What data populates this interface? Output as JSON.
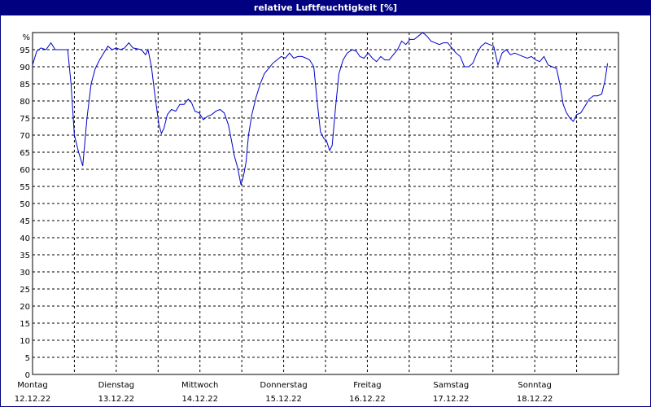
{
  "chart_data": {
    "type": "line",
    "title": "relative Luftfeuchtigkeit [%]",
    "y_unit_label": "%",
    "ylim": [
      0,
      100
    ],
    "y_ticks": [
      0,
      5,
      10,
      15,
      20,
      25,
      30,
      35,
      40,
      45,
      50,
      55,
      60,
      65,
      70,
      75,
      80,
      85,
      90,
      95
    ],
    "x_unit": "days since Montag 12.12.22 00:00",
    "xlim": [
      0,
      7
    ],
    "grid": true,
    "x_categories": [
      {
        "day": "Montag",
        "date": "12.12.22"
      },
      {
        "day": "Dienstag",
        "date": "13.12.22"
      },
      {
        "day": "Mittwoch",
        "date": "14.12.22"
      },
      {
        "day": "Donnerstag",
        "date": "15.12.22"
      },
      {
        "day": "Freitag",
        "date": "16.12.22"
      },
      {
        "day": "Samstag",
        "date": "17.12.22"
      },
      {
        "day": "Sonntag",
        "date": "18.12.22"
      }
    ],
    "series": [
      {
        "color": "#0000cc",
        "points": [
          [
            0.0,
            90.5
          ],
          [
            0.05,
            94.5
          ],
          [
            0.1,
            95.5
          ],
          [
            0.16,
            95.0
          ],
          [
            0.22,
            97.0
          ],
          [
            0.27,
            95.0
          ],
          [
            0.35,
            95.0
          ],
          [
            0.42,
            95.0
          ],
          [
            0.46,
            85.0
          ],
          [
            0.5,
            70.0
          ],
          [
            0.55,
            65.0
          ],
          [
            0.6,
            61.0
          ],
          [
            0.65,
            75.0
          ],
          [
            0.7,
            85.0
          ],
          [
            0.75,
            89.5
          ],
          [
            0.8,
            92.0
          ],
          [
            0.85,
            94.0
          ],
          [
            0.9,
            96.0
          ],
          [
            0.95,
            95.0
          ],
          [
            1.0,
            95.5
          ],
          [
            1.05,
            95.0
          ],
          [
            1.1,
            95.5
          ],
          [
            1.15,
            97.0
          ],
          [
            1.2,
            95.5
          ],
          [
            1.3,
            95.0
          ],
          [
            1.35,
            93.5
          ],
          [
            1.38,
            95.0
          ],
          [
            1.42,
            90.0
          ],
          [
            1.46,
            82.0
          ],
          [
            1.51,
            73.0
          ],
          [
            1.54,
            70.5
          ],
          [
            1.57,
            72.0
          ],
          [
            1.61,
            76.0
          ],
          [
            1.66,
            77.5
          ],
          [
            1.71,
            77.0
          ],
          [
            1.76,
            79.0
          ],
          [
            1.81,
            79.0
          ],
          [
            1.86,
            80.5
          ],
          [
            1.9,
            79.5
          ],
          [
            1.94,
            77.0
          ],
          [
            1.99,
            76.5
          ],
          [
            2.04,
            74.5
          ],
          [
            2.09,
            75.5
          ],
          [
            2.14,
            76.0
          ],
          [
            2.19,
            77.0
          ],
          [
            2.24,
            77.5
          ],
          [
            2.29,
            76.5
          ],
          [
            2.34,
            73.0
          ],
          [
            2.38,
            68.0
          ],
          [
            2.41,
            64.0
          ],
          [
            2.45,
            60.5
          ],
          [
            2.49,
            55.5
          ],
          [
            2.52,
            58.0
          ],
          [
            2.55,
            62.0
          ],
          [
            2.58,
            70.0
          ],
          [
            2.62,
            76.0
          ],
          [
            2.67,
            81.0
          ],
          [
            2.72,
            85.0
          ],
          [
            2.77,
            88.0
          ],
          [
            2.82,
            89.5
          ],
          [
            2.87,
            91.0
          ],
          [
            2.92,
            92.0
          ],
          [
            2.97,
            93.0
          ],
          [
            3.02,
            92.5
          ],
          [
            3.07,
            94.0
          ],
          [
            3.12,
            92.5
          ],
          [
            3.17,
            93.0
          ],
          [
            3.22,
            93.0
          ],
          [
            3.27,
            92.5
          ],
          [
            3.31,
            92.0
          ],
          [
            3.36,
            90.0
          ],
          [
            3.4,
            80.0
          ],
          [
            3.44,
            71.0
          ],
          [
            3.48,
            69.0
          ],
          [
            3.51,
            68.5
          ],
          [
            3.55,
            65.5
          ],
          [
            3.58,
            67.0
          ],
          [
            3.62,
            78.0
          ],
          [
            3.66,
            88.0
          ],
          [
            3.71,
            92.0
          ],
          [
            3.76,
            94.0
          ],
          [
            3.82,
            95.0
          ],
          [
            3.87,
            94.5
          ],
          [
            3.91,
            93.0
          ],
          [
            3.96,
            92.5
          ],
          [
            4.01,
            94.0
          ],
          [
            4.06,
            92.5
          ],
          [
            4.11,
            91.5
          ],
          [
            4.16,
            93.0
          ],
          [
            4.21,
            92.0
          ],
          [
            4.26,
            92.0
          ],
          [
            4.31,
            93.5
          ],
          [
            4.36,
            95.0
          ],
          [
            4.41,
            97.5
          ],
          [
            4.46,
            96.5
          ],
          [
            4.51,
            98.0
          ],
          [
            4.56,
            98.0
          ],
          [
            4.61,
            99.0
          ],
          [
            4.66,
            100.0
          ],
          [
            4.71,
            99.0
          ],
          [
            4.76,
            97.5
          ],
          [
            4.81,
            97.0
          ],
          [
            4.86,
            96.5
          ],
          [
            4.91,
            97.0
          ],
          [
            4.96,
            97.0
          ],
          [
            5.01,
            95.5
          ],
          [
            5.06,
            94.0
          ],
          [
            5.11,
            93.0
          ],
          [
            5.16,
            90.0
          ],
          [
            5.21,
            90.0
          ],
          [
            5.26,
            91.0
          ],
          [
            5.31,
            94.0
          ],
          [
            5.36,
            96.0
          ],
          [
            5.41,
            97.0
          ],
          [
            5.46,
            96.5
          ],
          [
            5.51,
            96.0
          ],
          [
            5.56,
            90.5
          ],
          [
            5.61,
            94.0
          ],
          [
            5.66,
            95.0
          ],
          [
            5.71,
            93.5
          ],
          [
            5.76,
            94.0
          ],
          [
            5.81,
            93.5
          ],
          [
            5.86,
            93.0
          ],
          [
            5.91,
            92.5
          ],
          [
            5.96,
            93.0
          ],
          [
            6.01,
            92.0
          ],
          [
            6.06,
            91.5
          ],
          [
            6.11,
            93.0
          ],
          [
            6.16,
            90.5
          ],
          [
            6.21,
            90.0
          ],
          [
            6.26,
            89.5
          ],
          [
            6.3,
            85.0
          ],
          [
            6.34,
            79.0
          ],
          [
            6.38,
            76.5
          ],
          [
            6.42,
            75.0
          ],
          [
            6.46,
            74.0
          ],
          [
            6.5,
            76.0
          ],
          [
            6.55,
            76.5
          ],
          [
            6.6,
            78.5
          ],
          [
            6.65,
            80.5
          ],
          [
            6.7,
            81.5
          ],
          [
            6.75,
            81.5
          ],
          [
            6.8,
            82.0
          ],
          [
            6.84,
            86.0
          ],
          [
            6.87,
            91.0
          ]
        ]
      }
    ]
  }
}
